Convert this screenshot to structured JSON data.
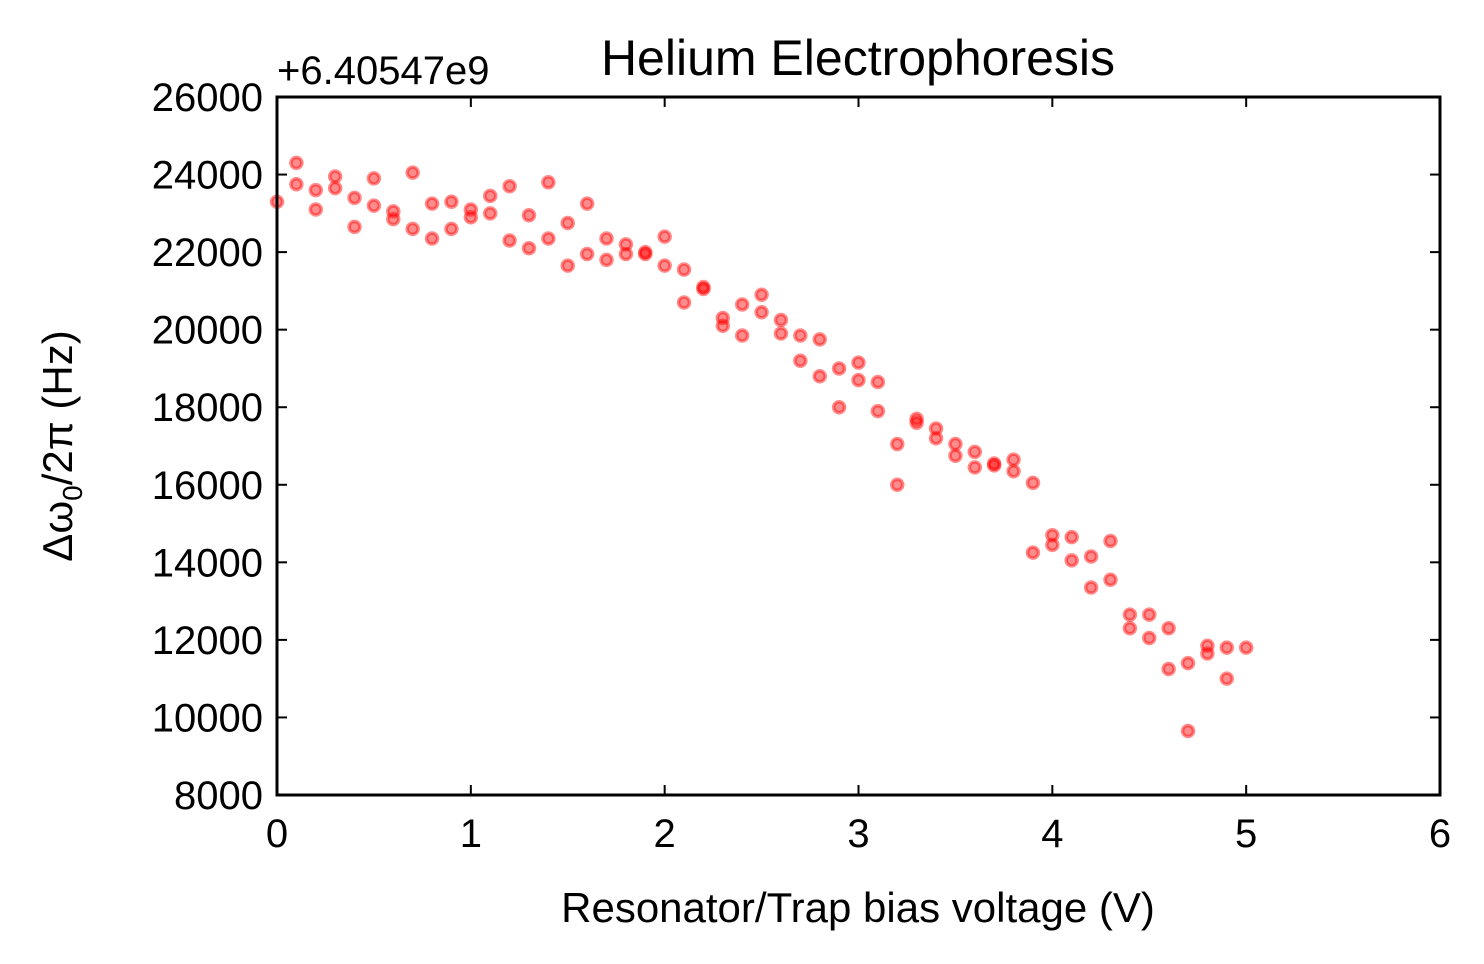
{
  "chart_data": {
    "type": "scatter",
    "title": "Helium Electrophoresis",
    "xlabel": "Resonator/Trap bias voltage (V)",
    "ylabel_parts": [
      "Δω",
      "0",
      "/2π (Hz)"
    ],
    "ylabel_text": "Δω0/2π (Hz)",
    "y_offset_label": "+6.40547e9",
    "xlim": [
      0,
      6
    ],
    "ylim": [
      8000,
      26000
    ],
    "x_ticks": [
      "0",
      "1",
      "2",
      "3",
      "4",
      "5",
      "6"
    ],
    "y_ticks": [
      "8000",
      "10000",
      "12000",
      "14000",
      "16000",
      "18000",
      "20000",
      "22000",
      "24000",
      "26000"
    ],
    "grid": false,
    "marker_color": "#ff0000",
    "points": [
      [
        0.0,
        23300
      ],
      [
        0.1,
        24300
      ],
      [
        0.1,
        23750
      ],
      [
        0.2,
        23600
      ],
      [
        0.2,
        23100
      ],
      [
        0.3,
        23950
      ],
      [
        0.3,
        23650
      ],
      [
        0.4,
        23400
      ],
      [
        0.4,
        22650
      ],
      [
        0.5,
        23900
      ],
      [
        0.5,
        23200
      ],
      [
        0.6,
        23050
      ],
      [
        0.6,
        22850
      ],
      [
        0.7,
        24050
      ],
      [
        0.7,
        22600
      ],
      [
        0.8,
        23250
      ],
      [
        0.8,
        22350
      ],
      [
        0.9,
        23300
      ],
      [
        0.9,
        22600
      ],
      [
        1.0,
        23100
      ],
      [
        1.0,
        22900
      ],
      [
        1.1,
        23450
      ],
      [
        1.1,
        23000
      ],
      [
        1.2,
        23700
      ],
      [
        1.2,
        22300
      ],
      [
        1.3,
        22950
      ],
      [
        1.3,
        22100
      ],
      [
        1.4,
        23800
      ],
      [
        1.4,
        22350
      ],
      [
        1.5,
        22750
      ],
      [
        1.5,
        21650
      ],
      [
        1.6,
        23250
      ],
      [
        1.6,
        21950
      ],
      [
        1.7,
        22350
      ],
      [
        1.7,
        21800
      ],
      [
        1.8,
        22200
      ],
      [
        1.8,
        21950
      ],
      [
        1.9,
        21950
      ],
      [
        1.9,
        22000
      ],
      [
        2.0,
        22400
      ],
      [
        2.0,
        21650
      ],
      [
        2.1,
        21550
      ],
      [
        2.1,
        20700
      ],
      [
        2.2,
        21100
      ],
      [
        2.2,
        21050
      ],
      [
        2.3,
        20300
      ],
      [
        2.3,
        20100
      ],
      [
        2.4,
        20650
      ],
      [
        2.4,
        19850
      ],
      [
        2.5,
        20900
      ],
      [
        2.5,
        20450
      ],
      [
        2.6,
        20250
      ],
      [
        2.6,
        19900
      ],
      [
        2.7,
        19850
      ],
      [
        2.7,
        19200
      ],
      [
        2.8,
        19750
      ],
      [
        2.8,
        18800
      ],
      [
        2.9,
        19000
      ],
      [
        2.9,
        18000
      ],
      [
        3.0,
        19150
      ],
      [
        3.0,
        18700
      ],
      [
        3.1,
        18650
      ],
      [
        3.1,
        17900
      ],
      [
        3.2,
        17050
      ],
      [
        3.2,
        16000
      ],
      [
        3.3,
        17700
      ],
      [
        3.3,
        17600
      ],
      [
        3.4,
        17450
      ],
      [
        3.4,
        17200
      ],
      [
        3.5,
        17050
      ],
      [
        3.5,
        16750
      ],
      [
        3.6,
        16850
      ],
      [
        3.6,
        16450
      ],
      [
        3.7,
        16550
      ],
      [
        3.7,
        16500
      ],
      [
        3.8,
        16650
      ],
      [
        3.8,
        16350
      ],
      [
        3.9,
        16050
      ],
      [
        3.9,
        14250
      ],
      [
        4.0,
        14700
      ],
      [
        4.0,
        14450
      ],
      [
        4.1,
        14650
      ],
      [
        4.1,
        14050
      ],
      [
        4.2,
        14150
      ],
      [
        4.2,
        13350
      ],
      [
        4.3,
        14550
      ],
      [
        4.3,
        13550
      ],
      [
        4.4,
        12650
      ],
      [
        4.4,
        12300
      ],
      [
        4.5,
        12650
      ],
      [
        4.5,
        12050
      ],
      [
        4.6,
        12300
      ],
      [
        4.6,
        11250
      ],
      [
        4.7,
        11400
      ],
      [
        4.7,
        9650
      ],
      [
        4.8,
        11850
      ],
      [
        4.8,
        11650
      ],
      [
        4.9,
        11800
      ],
      [
        4.9,
        11000
      ],
      [
        5.0,
        11800
      ]
    ]
  }
}
